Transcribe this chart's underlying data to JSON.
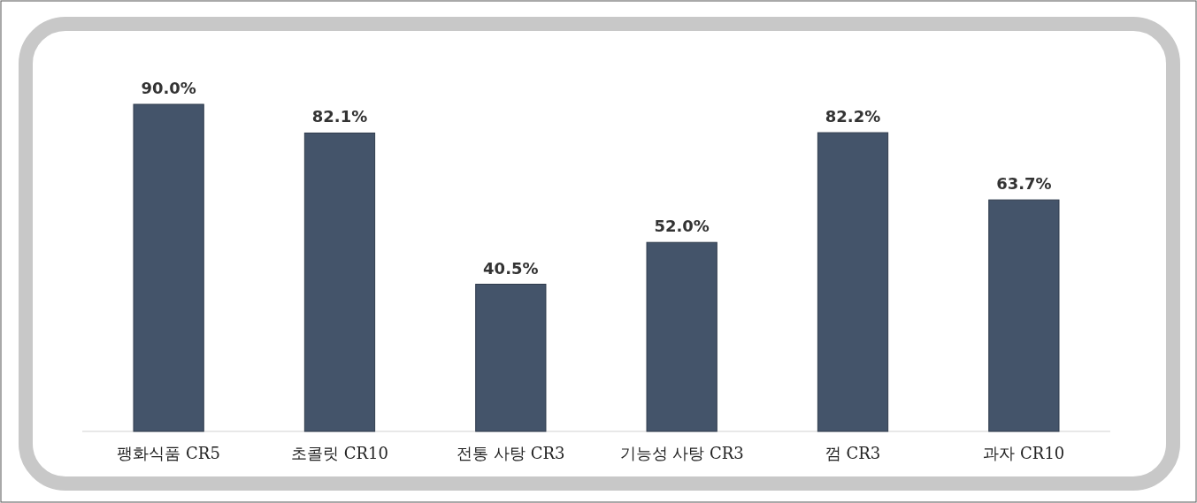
{
  "chart_data": {
    "type": "bar",
    "categories": [
      "팽화식품 CR5",
      "초콜릿 CR10",
      "전통 사탕 CR3",
      "기능성 사탕 CR3",
      "껌 CR3",
      "과자 CR10"
    ],
    "values": [
      90.0,
      82.1,
      40.5,
      52.0,
      82.2,
      63.7
    ],
    "value_labels": [
      "90.0%",
      "82.1%",
      "40.5%",
      "52.0%",
      "82.2%",
      "63.7%"
    ],
    "color": "#44546a"
  }
}
